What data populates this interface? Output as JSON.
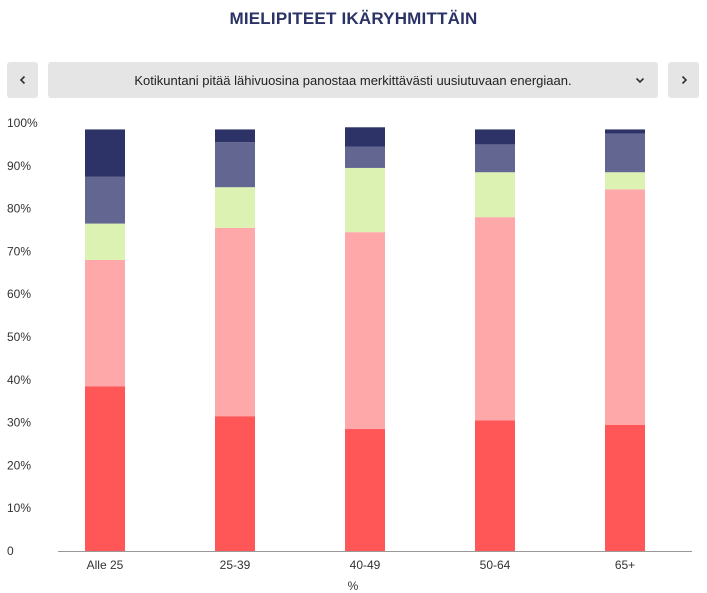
{
  "header": {
    "title": "MIELIPITEET IKÄRYHMITTÄIN"
  },
  "selector": {
    "value": "Kotikuntani pitää lähivuosina panostaa merkittävästi uusiutuvaan energiaan."
  },
  "nav": {
    "prev_icon": "chevron-left-icon",
    "next_icon": "chevron-right-icon",
    "dropdown_icon": "chevron-down-icon"
  },
  "chart_data": {
    "type": "bar",
    "stacked": true,
    "categories": [
      "Alle 25",
      "25-39",
      "40-49",
      "50-64",
      "65+"
    ],
    "xlabel": "%",
    "ylabel": "",
    "ylim": [
      0,
      100
    ],
    "yticks": [
      "0",
      "10%",
      "20%",
      "30%",
      "40%",
      "50%",
      "60%",
      "70%",
      "80%",
      "90%",
      "100%"
    ],
    "grid": false,
    "series": [
      {
        "color": "#ff5757",
        "values": [
          38.5,
          31.5,
          28.5,
          30.5,
          29.5
        ]
      },
      {
        "color": "#ffa8a9",
        "values": [
          29.5,
          44,
          46,
          47.5,
          55
        ]
      },
      {
        "color": "#dcf2b2",
        "values": [
          8.5,
          9.5,
          15,
          10.5,
          4
        ]
      },
      {
        "color": "#636691",
        "values": [
          11,
          10.5,
          5,
          6.5,
          9
        ]
      },
      {
        "color": "#2d3366",
        "values": [
          11,
          3,
          4.5,
          3.5,
          1
        ]
      }
    ]
  }
}
